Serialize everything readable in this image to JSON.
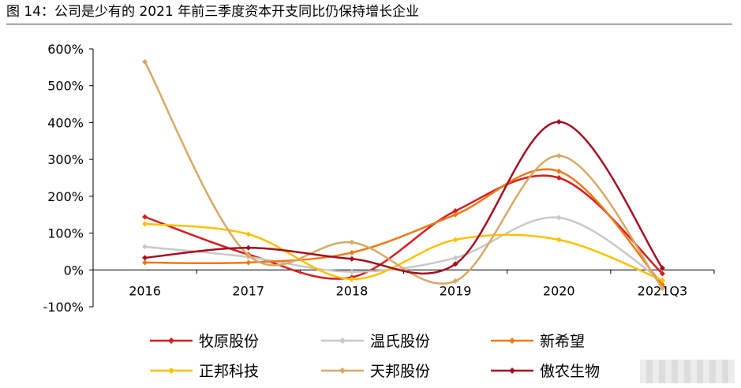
{
  "figure": {
    "title": "图  14：公司是少有的 2021 年前三季度资本开支同比仍保持增长企业"
  },
  "chart_data": {
    "type": "line",
    "title": "图  14：公司是少有的 2021 年前三季度资本开支同比仍保持增长企业",
    "xlabel": "",
    "ylabel": "",
    "categories": [
      "2016",
      "2017",
      "2018",
      "2019",
      "2020",
      "2021Q3"
    ],
    "ylim": [
      -100,
      600
    ],
    "yticks": [
      -100,
      0,
      100,
      200,
      300,
      400,
      500,
      600
    ],
    "ytick_labels": [
      "-100%",
      "0%",
      "100%",
      "200%",
      "300%",
      "400%",
      "500%",
      "600%"
    ],
    "legend_position": "bottom",
    "smooth": true,
    "series": [
      {
        "name": "牧原股份",
        "color": "#D41F1F",
        "values": [
          144,
          42,
          -20,
          160,
          250,
          -10
        ]
      },
      {
        "name": "温氏股份",
        "color": "#C8C8C8",
        "values": [
          63,
          35,
          -5,
          33,
          142,
          -30
        ]
      },
      {
        "name": "新希望",
        "color": "#F07818",
        "values": [
          20,
          20,
          47,
          150,
          268,
          -40
        ]
      },
      {
        "name": "正邦科技",
        "color": "#FFC000",
        "values": [
          125,
          97,
          -25,
          82,
          82,
          -28
        ]
      },
      {
        "name": "天邦股份",
        "color": "#D9A864",
        "values": [
          565,
          40,
          75,
          -30,
          310,
          -50
        ]
      },
      {
        "name": "傲农生物",
        "color": "#A50E1E",
        "values": [
          33,
          60,
          30,
          16,
          402,
          5
        ]
      }
    ]
  }
}
